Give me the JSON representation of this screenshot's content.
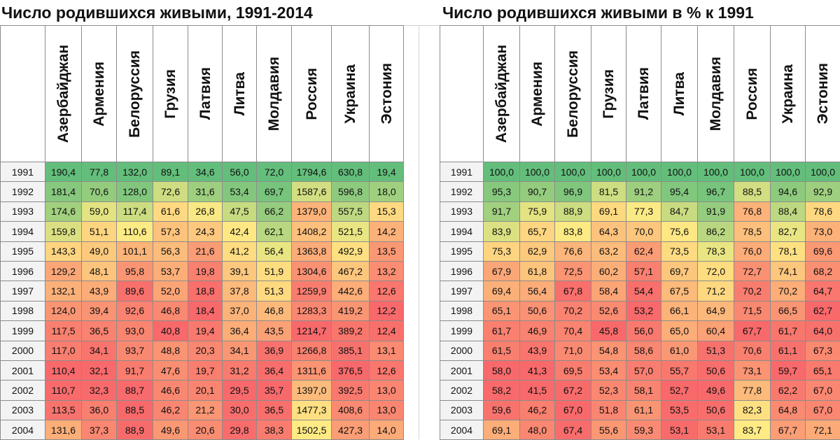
{
  "left": {
    "title": "Число родившихся живыми, 1991-2014",
    "countries": [
      "Азербайджан",
      "Армения",
      "Белоруссия",
      "Грузия",
      "Латвия",
      "Литва",
      "Молдавия",
      "Россия",
      "Украина",
      "Эстония"
    ],
    "rows": [
      {
        "year": "1991",
        "values": [
          "190,4",
          "77,8",
          "132,0",
          "89,1",
          "34,6",
          "56,0",
          "72,0",
          "1794,6",
          "630,8",
          "19,4"
        ]
      },
      {
        "year": "1992",
        "values": [
          "181,4",
          "70,6",
          "128,0",
          "72,6",
          "31,6",
          "53,4",
          "69,7",
          "1587,6",
          "596,8",
          "18,0"
        ]
      },
      {
        "year": "1993",
        "values": [
          "174,6",
          "59,0",
          "117,4",
          "61,6",
          "26,8",
          "47,5",
          "66,2",
          "1379,0",
          "557,5",
          "15,3"
        ]
      },
      {
        "year": "1994",
        "values": [
          "159,8",
          "51,1",
          "110,6",
          "57,3",
          "24,3",
          "42,4",
          "62,1",
          "1408,2",
          "521,5",
          "14,2"
        ]
      },
      {
        "year": "1995",
        "values": [
          "143,3",
          "49,0",
          "101,1",
          "56,3",
          "21,6",
          "41,2",
          "56,4",
          "1363,8",
          "492,9",
          "13,5"
        ]
      },
      {
        "year": "1996",
        "values": [
          "129,2",
          "48,1",
          "95,8",
          "53,7",
          "19,8",
          "39,1",
          "51,9",
          "1304,6",
          "467,2",
          "13,2"
        ]
      },
      {
        "year": "1997",
        "values": [
          "132,1",
          "43,9",
          "89,6",
          "52,0",
          "18,8",
          "37,8",
          "51,3",
          "1259,9",
          "442,6",
          "12,6"
        ]
      },
      {
        "year": "1998",
        "values": [
          "124,0",
          "39,4",
          "92,6",
          "46,8",
          "18,4",
          "37,0",
          "46,8",
          "1283,3",
          "419,2",
          "12,2"
        ]
      },
      {
        "year": "1999",
        "values": [
          "117,5",
          "36,5",
          "93,0",
          "40,8",
          "19,4",
          "36,4",
          "43,5",
          "1214,7",
          "389,2",
          "12,4"
        ]
      },
      {
        "year": "2000",
        "values": [
          "117,0",
          "34,1",
          "93,7",
          "48,8",
          "20,3",
          "34,1",
          "36,9",
          "1266,8",
          "385,1",
          "13,1"
        ]
      },
      {
        "year": "2001",
        "values": [
          "110,4",
          "32,1",
          "91,7",
          "47,6",
          "19,7",
          "31,2",
          "36,4",
          "1311,6",
          "376,5",
          "12,6"
        ]
      },
      {
        "year": "2002",
        "values": [
          "110,7",
          "32,3",
          "88,7",
          "46,6",
          "20,1",
          "29,5",
          "35,7",
          "1397,0",
          "392,5",
          "13,0"
        ]
      },
      {
        "year": "2003",
        "values": [
          "113,5",
          "36,0",
          "88,5",
          "46,2",
          "21,2",
          "30,0",
          "36,5",
          "1477,3",
          "408,6",
          "13,0"
        ]
      },
      {
        "year": "2004",
        "values": [
          "131,6",
          "37,3",
          "88,9",
          "49,6",
          "20,6",
          "29,8",
          "38,3",
          "1502,5",
          "427,3",
          "14,0"
        ]
      }
    ]
  },
  "right": {
    "title": "Число родившихся живыми в % к 1991",
    "countries": [
      "Азербайджан",
      "Армения",
      "Белоруссия",
      "Грузия",
      "Латвия",
      "Литва",
      "Молдавия",
      "Россия",
      "Украина",
      "Эстония"
    ],
    "rows": [
      {
        "year": "1991",
        "values": [
          "100,0",
          "100,0",
          "100,0",
          "100,0",
          "100,0",
          "100,0",
          "100,0",
          "100,0",
          "100,0",
          "100,0"
        ]
      },
      {
        "year": "1992",
        "values": [
          "95,3",
          "90,7",
          "96,9",
          "81,5",
          "91,2",
          "95,4",
          "96,7",
          "88,5",
          "94,6",
          "92,9"
        ]
      },
      {
        "year": "1993",
        "values": [
          "91,7",
          "75,9",
          "88,9",
          "69,1",
          "77,3",
          "84,7",
          "91,9",
          "76,8",
          "88,4",
          "78,6"
        ]
      },
      {
        "year": "1994",
        "values": [
          "83,9",
          "65,7",
          "83,8",
          "64,3",
          "70,0",
          "75,6",
          "86,2",
          "78,5",
          "82,7",
          "73,0"
        ]
      },
      {
        "year": "1995",
        "values": [
          "75,3",
          "62,9",
          "76,6",
          "63,2",
          "62,4",
          "73,5",
          "78,3",
          "76,0",
          "78,1",
          "69,6"
        ]
      },
      {
        "year": "1996",
        "values": [
          "67,9",
          "61,8",
          "72,5",
          "60,2",
          "57,1",
          "69,7",
          "72,0",
          "72,7",
          "74,1",
          "68,2"
        ]
      },
      {
        "year": "1997",
        "values": [
          "69,4",
          "56,4",
          "67,8",
          "58,4",
          "54,4",
          "67,5",
          "71,2",
          "70,2",
          "70,2",
          "64,7"
        ]
      },
      {
        "year": "1998",
        "values": [
          "65,1",
          "50,6",
          "70,2",
          "52,6",
          "53,2",
          "66,1",
          "64,9",
          "71,5",
          "66,5",
          "62,7"
        ]
      },
      {
        "year": "1999",
        "values": [
          "61,7",
          "46,9",
          "70,4",
          "45,8",
          "56,0",
          "65,0",
          "60,4",
          "67,7",
          "61,7",
          "64,0"
        ]
      },
      {
        "year": "2000",
        "values": [
          "61,5",
          "43,9",
          "71,0",
          "54,8",
          "58,6",
          "61,0",
          "51,3",
          "70,6",
          "61,1",
          "67,3"
        ]
      },
      {
        "year": "2001",
        "values": [
          "58,0",
          "41,3",
          "69,5",
          "53,4",
          "57,0",
          "55,7",
          "50,6",
          "73,1",
          "59,7",
          "65,1"
        ]
      },
      {
        "year": "2002",
        "values": [
          "58,2",
          "41,5",
          "67,2",
          "52,3",
          "58,1",
          "52,7",
          "49,6",
          "77,8",
          "62,2",
          "67,0"
        ]
      },
      {
        "year": "2003",
        "values": [
          "59,6",
          "46,2",
          "67,0",
          "51,8",
          "61,1",
          "53,5",
          "50,6",
          "82,3",
          "64,8",
          "67,0"
        ]
      },
      {
        "year": "2004",
        "values": [
          "69,1",
          "48,0",
          "67,4",
          "55,6",
          "59,3",
          "53,1",
          "53,1",
          "83,7",
          "67,7",
          "72,1"
        ]
      }
    ]
  },
  "colors": {
    "scale_high": "#63be7b",
    "scale_mid": "#ffeb84",
    "scale_low": "#f8696b",
    "year_cell": "#f3f3f3",
    "grid": "#8c8c8c"
  }
}
